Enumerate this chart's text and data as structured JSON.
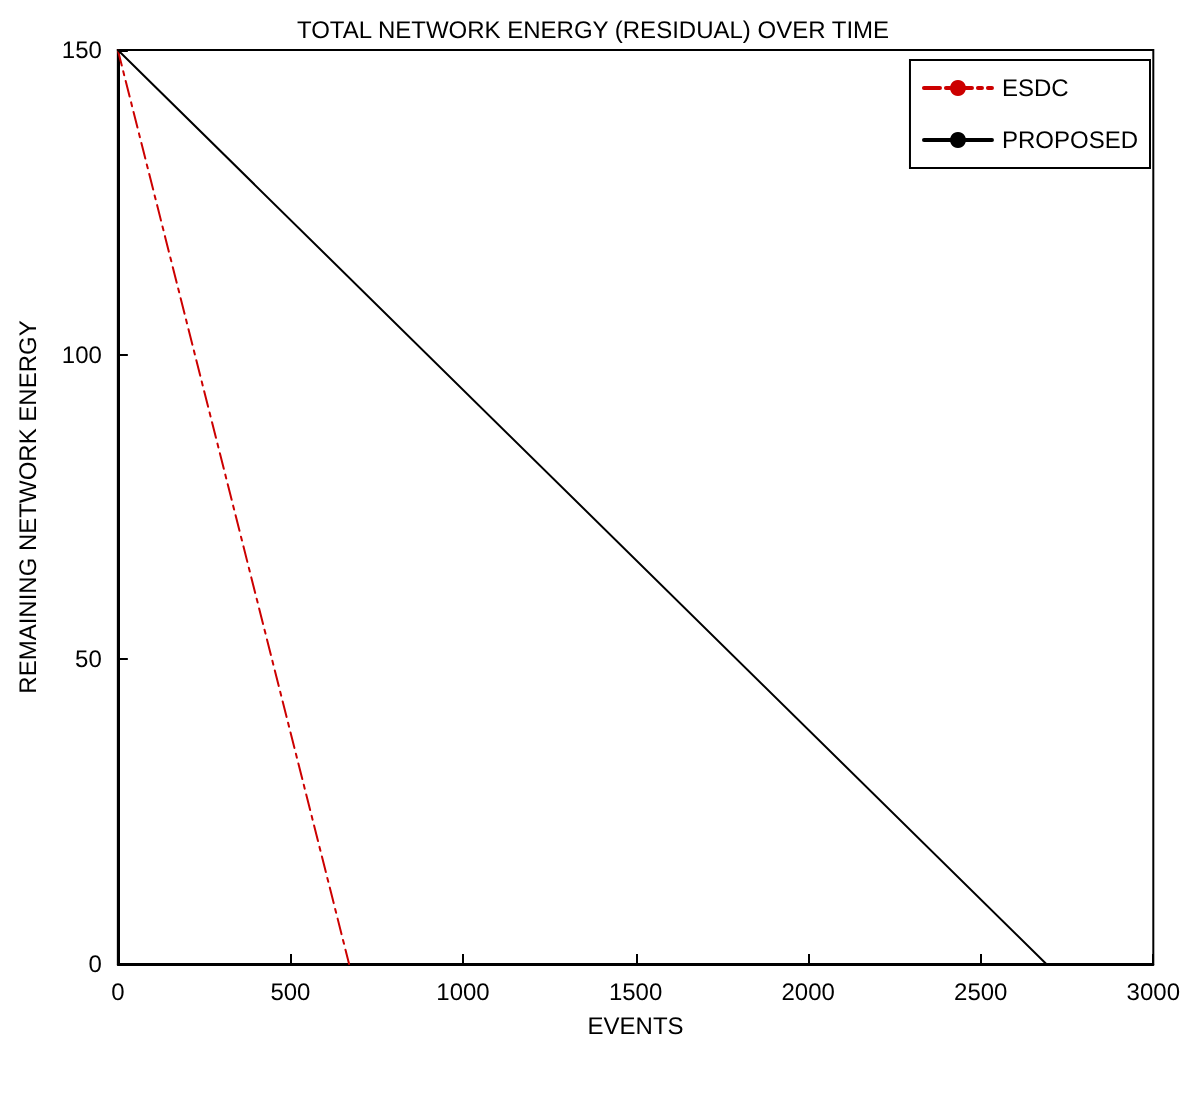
{
  "chart_data": {
    "type": "line",
    "title": "TOTAL NETWORK ENERGY (RESIDUAL) OVER TIME",
    "xlabel": "EVENTS",
    "ylabel": "REMAINING NETWORK ENERGY",
    "xlim": [
      0,
      3000
    ],
    "xticks": [
      0,
      500,
      1000,
      1500,
      2000,
      2500,
      3000
    ],
    "ylim": [
      0,
      150
    ],
    "yticks": [
      0,
      50,
      100,
      150
    ],
    "grid": false,
    "legend": "top right",
    "marker": "none",
    "series": [
      {
        "name": "ESDC",
        "color": "#cc0000",
        "line_style": "dashed",
        "x": [
          0,
          670
        ],
        "values": [
          150,
          0
        ]
      },
      {
        "name": "PROPOSED",
        "color": "#000000",
        "line_style": "solid",
        "x": [
          0,
          2690
        ],
        "values": [
          150,
          0
        ]
      }
    ]
  }
}
